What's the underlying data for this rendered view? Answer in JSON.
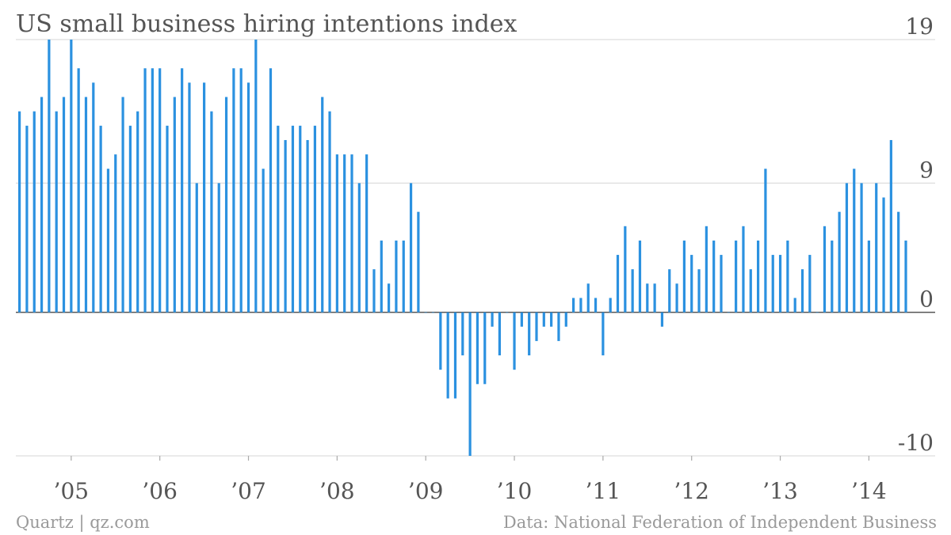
{
  "chart_data": {
    "type": "bar",
    "title": "US small business hiring intentions index",
    "xlabel": "",
    "ylabel": "",
    "ylim": [
      -10,
      19
    ],
    "y_ticks": [
      19,
      9,
      0,
      -10
    ],
    "y_tick_labels": [
      "19",
      "9",
      "0",
      "-10"
    ],
    "grid": true,
    "start_month": "2004-06",
    "x_tick_labels": [
      "’05",
      "’06",
      "’07",
      "’08",
      "’09",
      "’10",
      "’11",
      "’12",
      "’13",
      "’14"
    ],
    "x_tick_positions": [
      "2005-01",
      "2006-01",
      "2007-01",
      "2008-01",
      "2009-01",
      "2010-01",
      "2011-01",
      "2012-01",
      "2013-01",
      "2014-01"
    ],
    "bar_color": "#2b91e0",
    "values": [
      14,
      13,
      14,
      15,
      19,
      14,
      15,
      19,
      17,
      15,
      16,
      13,
      10,
      11,
      15,
      13,
      14,
      17,
      17,
      17,
      13,
      15,
      17,
      16,
      9,
      16,
      14,
      9,
      15,
      17,
      17,
      16,
      19,
      10,
      17,
      13,
      12,
      13,
      13,
      12,
      13,
      15,
      14,
      11,
      11,
      11,
      9,
      11,
      3,
      5,
      2,
      5,
      5,
      9,
      7,
      0,
      0,
      -4,
      -6,
      -6,
      -3,
      -10,
      -5,
      -5,
      -1,
      -3,
      0,
      -4,
      -1,
      -3,
      -2,
      -1,
      -1,
      -2,
      -1,
      1,
      1,
      2,
      1,
      -3,
      1,
      4,
      6,
      3,
      5,
      2,
      2,
      -1,
      3,
      2,
      5,
      4,
      3,
      6,
      5,
      4,
      0,
      5,
      6,
      3,
      5,
      10,
      4,
      4,
      5,
      1,
      3,
      4,
      0,
      6,
      5,
      7,
      9,
      10,
      9,
      5,
      9,
      8,
      12,
      7,
      5
    ]
  },
  "footer": {
    "left": "Quartz | qz.com",
    "right": "Data: National Federation of Independent Business"
  }
}
